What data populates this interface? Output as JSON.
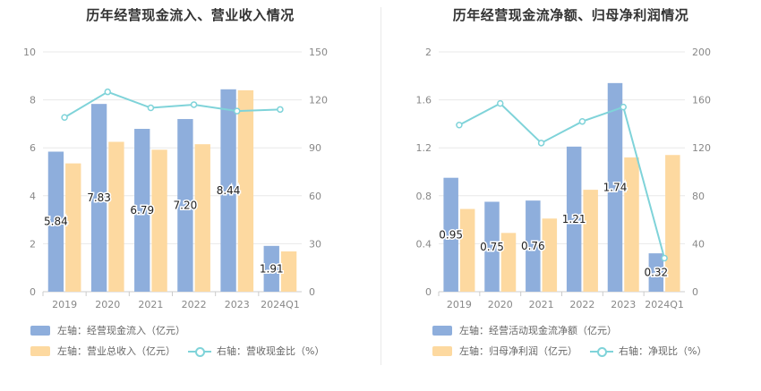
{
  "colors": {
    "bar_primary": "#8eaedc",
    "bar_secondary": "#fdd9a0",
    "line": "#7fd3d9",
    "axis_text": "#888888",
    "grid": "#e8e8e8"
  },
  "charts": [
    {
      "title": "历年经营现金流入、营业收入情况",
      "legend": [
        {
          "label": "左轴：经营现金流入（亿元）",
          "type": "bar",
          "color": "#8eaedc"
        },
        {
          "label": "左轴：营业总收入（亿元）",
          "type": "bar",
          "color": "#fdd9a0"
        },
        {
          "label": "右轴：营收现金比（%）",
          "type": "line",
          "color": "#7fd3d9"
        }
      ]
    },
    {
      "title": "历年经营现金流净额、归母净利润情况",
      "legend": [
        {
          "label": "左轴：经营活动现金流净额（亿元）",
          "type": "bar",
          "color": "#8eaedc"
        },
        {
          "label": "左轴：归母净利润（亿元）",
          "type": "bar",
          "color": "#fdd9a0"
        },
        {
          "label": "右轴：净现比（%）",
          "type": "line",
          "color": "#7fd3d9"
        }
      ]
    }
  ],
  "chart_data": [
    {
      "type": "bar",
      "title": "历年经营现金流入、营业收入情况",
      "categories": [
        "2019",
        "2020",
        "2021",
        "2022",
        "2023",
        "2024Q1"
      ],
      "y_left": {
        "min": 0,
        "max": 10,
        "ticks": [
          "0",
          "2",
          "4",
          "6",
          "8",
          "10"
        ]
      },
      "y_right": {
        "min": 0,
        "max": 150,
        "ticks": [
          "0",
          "30",
          "60",
          "90",
          "120",
          "150"
        ]
      },
      "grid": true,
      "series": [
        {
          "name": "左轴：经营现金流入（亿元）",
          "kind": "bar",
          "axis": "left",
          "values": [
            5.84,
            7.83,
            6.79,
            7.2,
            8.44,
            1.91
          ],
          "labels": [
            "5.84",
            "7.83",
            "6.79",
            "7.20",
            "8.44",
            "1.91"
          ]
        },
        {
          "name": "左轴：营业总收入（亿元）",
          "kind": "bar",
          "axis": "left",
          "values": [
            5.35,
            6.25,
            5.92,
            6.15,
            8.4,
            1.68
          ]
        },
        {
          "name": "右轴：营收现金比（%）",
          "kind": "line",
          "axis": "right",
          "values": [
            109,
            125,
            115,
            117,
            113,
            114
          ]
        }
      ]
    },
    {
      "type": "bar",
      "title": "历年经营现金流净额、归母净利润情况",
      "categories": [
        "2019",
        "2020",
        "2021",
        "2022",
        "2023",
        "2024Q1"
      ],
      "y_left": {
        "min": 0,
        "max": 2,
        "ticks": [
          "0",
          "0.4",
          "0.8",
          "1.2",
          "1.6",
          "2"
        ]
      },
      "y_right": {
        "min": 0,
        "max": 200,
        "ticks": [
          "0",
          "40",
          "80",
          "120",
          "160",
          "200"
        ]
      },
      "grid": true,
      "series": [
        {
          "name": "左轴：经营活动现金流净额（亿元）",
          "kind": "bar",
          "axis": "left",
          "values": [
            0.95,
            0.75,
            0.76,
            1.21,
            1.74,
            0.32
          ],
          "labels": [
            "0.95",
            "0.75",
            "0.76",
            "1.21",
            "1.74",
            "0.32"
          ]
        },
        {
          "name": "左轴：归母净利润（亿元）",
          "kind": "bar",
          "axis": "left",
          "values": [
            0.69,
            0.49,
            0.61,
            0.85,
            1.12,
            1.14
          ]
        },
        {
          "name": "右轴：净现比（%）",
          "kind": "line",
          "axis": "right",
          "values": [
            139,
            157,
            124,
            142,
            154,
            28
          ]
        }
      ]
    }
  ]
}
